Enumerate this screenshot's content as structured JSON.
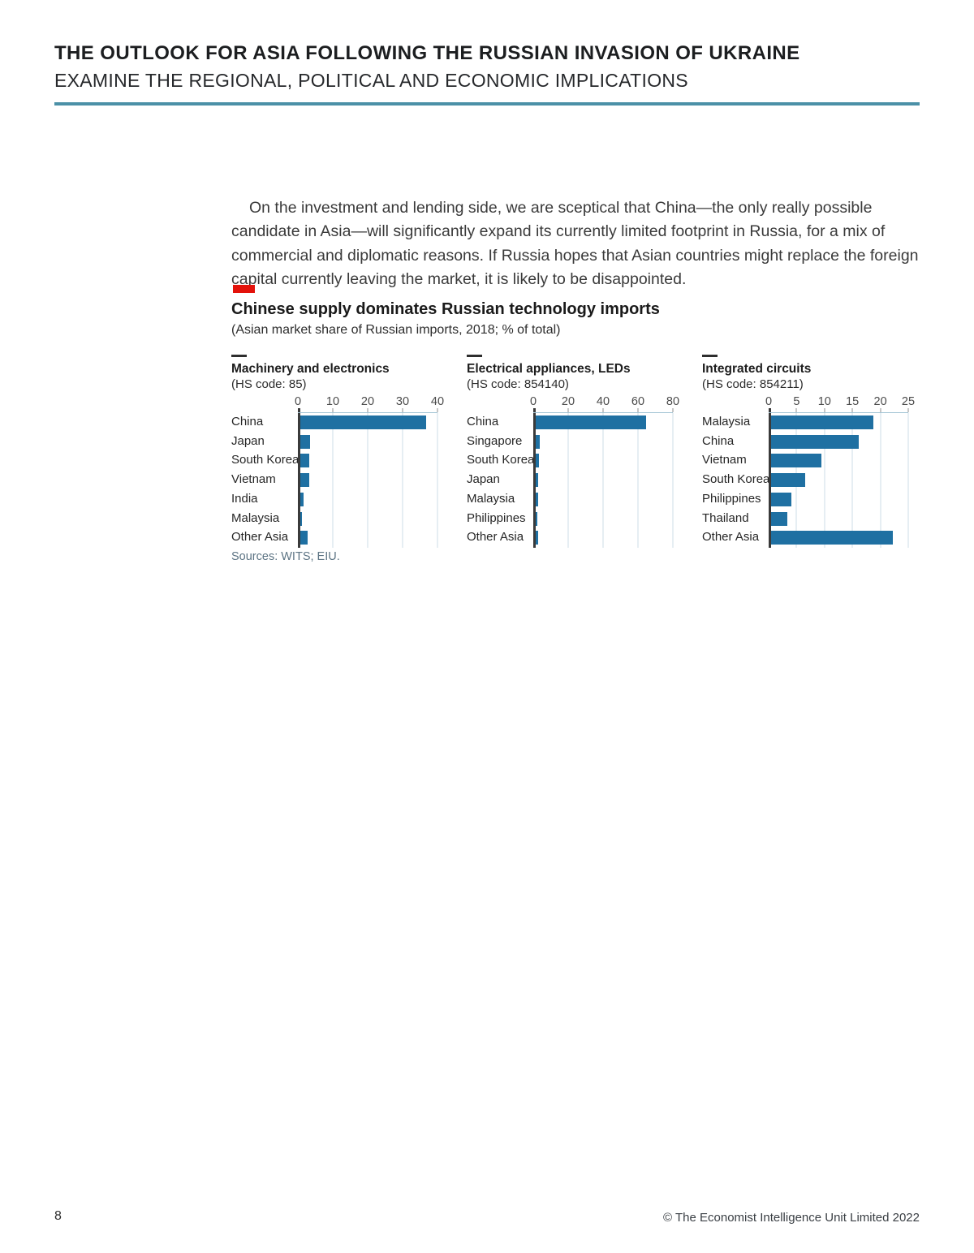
{
  "header": {
    "title": "THE OUTLOOK FOR ASIA FOLLOWING THE RUSSIAN INVASION OF UKRAINE",
    "subtitle": "EXAMINE THE REGIONAL, POLITICAL AND ECONOMIC IMPLICATIONS",
    "rule_color": "#4b90a7"
  },
  "body": {
    "paragraph": "On the investment and lending side, we are sceptical that China—the only really possible candidate in Asia—will significantly expand its currently limited footprint in Russia, for a mix of commercial and diplomatic reasons. If Russia hopes that Asian countries might replace the foreign capital currently leaving the market, it is likely to be disappointed."
  },
  "figure": {
    "marker_color": "#e3120b",
    "bar_color": "#1f70a2",
    "title": "Chinese supply dominates Russian technology imports",
    "subtitle": "(Asian market share of Russian imports, 2018; % of total)",
    "sources": "Sources: WITS; EIU."
  },
  "chart_data": [
    {
      "type": "bar",
      "orientation": "horizontal",
      "title": "Machinery and electronics",
      "subtitle": "(HS code: 85)",
      "categories": [
        "China",
        "Japan",
        "South Korea",
        "Vietnam",
        "India",
        "Malaysia",
        "Other Asia"
      ],
      "values": [
        36.8,
        3.6,
        3.2,
        3.3,
        1.6,
        1.2,
        2.8
      ],
      "xlim": [
        0,
        40
      ],
      "xticks": [
        0,
        10,
        20,
        30,
        40
      ],
      "axis_position": "top",
      "grid": true,
      "legend": false
    },
    {
      "type": "bar",
      "orientation": "horizontal",
      "title": "Electrical appliances, LEDs",
      "subtitle": "(HS code: 854140)",
      "categories": [
        "China",
        "Singapore",
        "South Korea",
        "Japan",
        "Malaysia",
        "Philippines",
        "Other Asia"
      ],
      "values": [
        64.5,
        3.5,
        3.2,
        3.0,
        2.6,
        2.1,
        3.0
      ],
      "xlim": [
        0,
        80
      ],
      "xticks": [
        0,
        20,
        40,
        60,
        80
      ],
      "axis_position": "top",
      "grid": true,
      "legend": false
    },
    {
      "type": "bar",
      "orientation": "horizontal",
      "title": "Integrated circuits",
      "subtitle": "(HS code: 854211)",
      "categories": [
        "Malaysia",
        "China",
        "Vietnam",
        "South Korea",
        "Philippines",
        "Thailand",
        "Other Asia"
      ],
      "values": [
        18.8,
        16.2,
        9.4,
        6.6,
        4.1,
        3.3,
        22.3
      ],
      "xlim": [
        0,
        25
      ],
      "xticks": [
        0,
        5,
        10,
        15,
        20,
        25
      ],
      "axis_position": "top",
      "grid": true,
      "legend": false
    }
  ],
  "footer": {
    "page_number": "8",
    "copyright": "© The Economist Intelligence Unit Limited 2022"
  }
}
